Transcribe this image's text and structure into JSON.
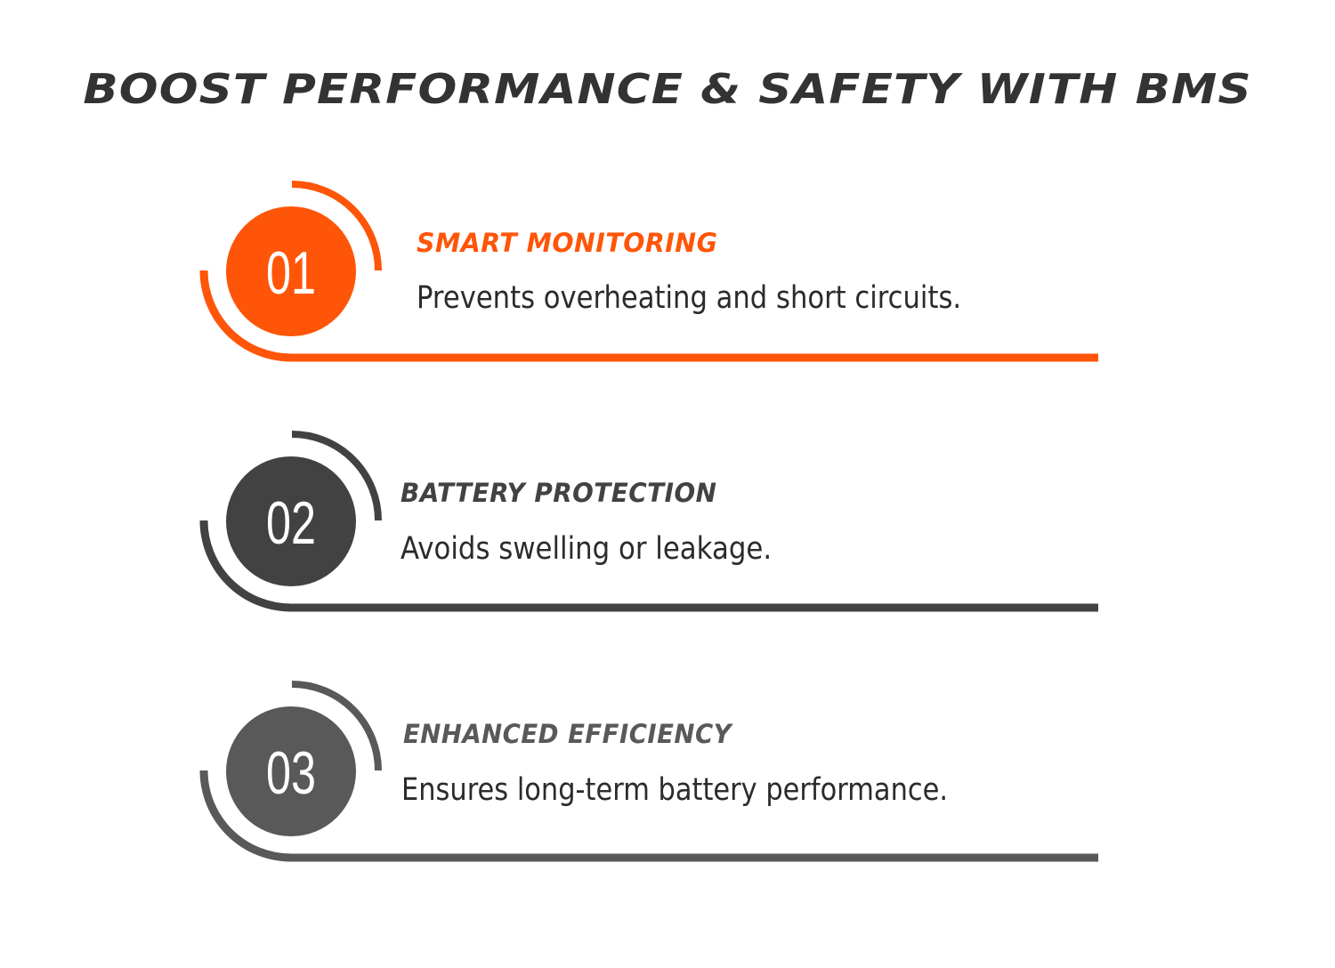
{
  "title": "BOOST PERFORMANCE & SAFETY WITH BMS",
  "colors": {
    "accent": "#FF5508",
    "dark": "#424242",
    "medium": "#595959",
    "title": "#333333",
    "text": "#2B2B2B"
  },
  "items": [
    {
      "number": "01",
      "heading": "SMART MONITORING",
      "description": "Prevents overheating and short circuits.",
      "color": "#FF5508"
    },
    {
      "number": "02",
      "heading": "BATTERY PROTECTION",
      "description": "Avoids swelling or leakage.",
      "color": "#424242"
    },
    {
      "number": "03",
      "heading": "ENHANCED EFFICIENCY",
      "description": "Ensures long-term battery performance.",
      "color": "#595959"
    }
  ]
}
